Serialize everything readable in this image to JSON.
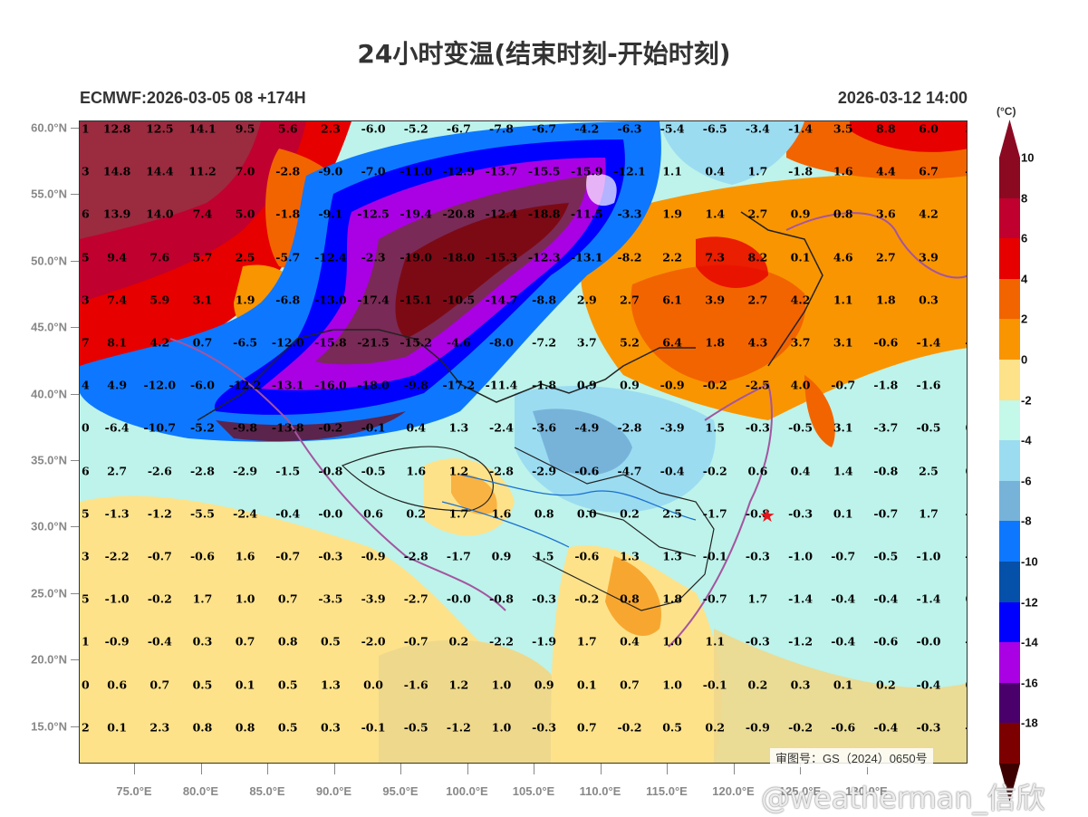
{
  "title": "24小时变温(结束时刻-开始时刻)",
  "subtitle_left": "ECMWF:2026-03-05 08 +174H",
  "subtitle_right": "2026-03-12 14:00",
  "colorbar": {
    "unit": "(°C)",
    "levels": [
      {
        "label": "10",
        "color": "#8b0a22"
      },
      {
        "label": "8",
        "color": "#c0002e"
      },
      {
        "label": "6",
        "color": "#e60000"
      },
      {
        "label": "4",
        "color": "#f26400"
      },
      {
        "label": "2",
        "color": "#f99500"
      },
      {
        "label": "0",
        "color": "#fde28a"
      },
      {
        "label": "-2",
        "color": "#c4f8e8"
      },
      {
        "label": "-4",
        "color": "#9bdcf1"
      },
      {
        "label": "-6",
        "color": "#77b3d9"
      },
      {
        "label": "-8",
        "color": "#0d78ff"
      },
      {
        "label": "-10",
        "color": "#0550a8"
      },
      {
        "label": "-12",
        "color": "#0000ff"
      },
      {
        "label": "-14",
        "color": "#aa00e4"
      },
      {
        "label": "-16",
        "color": "#4a006a"
      },
      {
        "label": "-18",
        "color": "#7d0000"
      }
    ],
    "top_arrow_color": "#8b0a22",
    "bottom_arrow_color": "#3d0000"
  },
  "axes": {
    "y_labels": [
      "60.0°N",
      "55.0°N",
      "50.0°N",
      "45.0°N",
      "40.0°N",
      "35.0°N",
      "30.0°N",
      "25.0°N",
      "20.0°N",
      "15.0°N"
    ],
    "x_labels": [
      "75.0°E",
      "80.0°E",
      "85.0°E",
      "90.0°E",
      "95.0°E",
      "100.0°E",
      "105.0°E",
      "110.0°E",
      "115.0°E",
      "120.0°E",
      "125.0°E",
      "130.0°E"
    ]
  },
  "grid_values": [
    [
      "1",
      "12.8",
      "12.5",
      "14.1",
      "9.5",
      "5.6",
      "2.3",
      "-6.0",
      "-5.2",
      "-6.7",
      "-7.8",
      "-6.7",
      "-4.2",
      "-6.3",
      "-5.4",
      "-6.5",
      "-3.4",
      "-1.4",
      "3.5",
      "8.8",
      "6.0",
      "3."
    ],
    [
      "3",
      "14.8",
      "14.4",
      "11.2",
      "7.0",
      "-2.8",
      "-9.0",
      "-7.0",
      "-11.0",
      "-12.9",
      "-13.7",
      "-15.5",
      "-15.9",
      "-12.1",
      "1.1",
      "0.4",
      "1.7",
      "-1.8",
      "1.6",
      "4.4",
      "6.7",
      "-0"
    ],
    [
      "6",
      "13.9",
      "14.0",
      "7.4",
      "5.0",
      "-1.8",
      "-9.1",
      "-12.5",
      "-19.4",
      "-20.8",
      "-12.4",
      "-18.8",
      "-11.5",
      "-3.3",
      "1.9",
      "1.4",
      "2.7",
      "0.9",
      "0.8",
      "3.6",
      "4.2",
      "1."
    ],
    [
      "5",
      "9.4",
      "7.6",
      "5.7",
      "2.5",
      "-5.7",
      "-12.4",
      "-2.3",
      "-19.0",
      "-18.0",
      "-15.3",
      "-12.3",
      "-13.1",
      "-8.2",
      "2.2",
      "7.3",
      "8.2",
      "0.1",
      "4.6",
      "2.7",
      "3.9",
      "1."
    ],
    [
      "3",
      "7.4",
      "5.9",
      "3.1",
      "1.9",
      "-6.8",
      "-13.0",
      "-17.4",
      "-15.1",
      "-10.5",
      "-14.7",
      "-8.8",
      "2.9",
      "2.7",
      "6.1",
      "3.9",
      "2.7",
      "4.2",
      "1.1",
      "1.8",
      "0.3",
      "1."
    ],
    [
      "7",
      "8.1",
      "4.2",
      "0.7",
      "-6.5",
      "-12.0",
      "-15.8",
      "-21.5",
      "-15.2",
      "-4.6",
      "-8.0",
      "-7.2",
      "3.7",
      "5.2",
      "6.4",
      "1.8",
      "4.3",
      "3.7",
      "3.1",
      "-0.6",
      "-1.4",
      "-0"
    ],
    [
      "4",
      "4.9",
      "-12.0",
      "-6.0",
      "-12.2",
      "-13.1",
      "-16.0",
      "-18.0",
      "-9.8",
      "-17.2",
      "-11.4",
      "-1.8",
      "0.9",
      "0.9",
      "-0.9",
      "-0.2",
      "-2.5",
      "4.0",
      "-0.7",
      "-1.8",
      "-1.6",
      "1."
    ],
    [
      "0",
      "-6.4",
      "-10.7",
      "-5.2",
      "-9.8",
      "-13.8",
      "-0.2",
      "-0.1",
      "0.4",
      "1.3",
      "-2.4",
      "-3.6",
      "-4.9",
      "-2.8",
      "-3.9",
      "1.5",
      "-0.3",
      "-0.5",
      "3.1",
      "-3.7",
      "-0.5",
      "0."
    ],
    [
      "6",
      "2.7",
      "-2.6",
      "-2.8",
      "-2.9",
      "-1.5",
      "-0.8",
      "-0.5",
      "1.6",
      "1.2",
      "-2.8",
      "-2.9",
      "-0.6",
      "-4.7",
      "-0.4",
      "-0.2",
      "0.6",
      "0.4",
      "1.4",
      "-0.8",
      "2.5",
      "0."
    ],
    [
      "5",
      "-1.3",
      "-1.2",
      "-5.5",
      "-2.4",
      "-0.4",
      "-0.0",
      "0.6",
      "0.2",
      "1.7",
      "1.6",
      "0.8",
      "0.0",
      "0.2",
      "2.5",
      "-1.7",
      "-0.8",
      "-0.3",
      "0.1",
      "-0.7",
      "1.7",
      "-0"
    ],
    [
      "3",
      "-2.2",
      "-0.7",
      "-0.6",
      "1.6",
      "-0.7",
      "-0.3",
      "-0.9",
      "-2.8",
      "-1.7",
      "0.9",
      "1.5",
      "-0.6",
      "1.3",
      "1.3",
      "-0.1",
      "-0.3",
      "-1.0",
      "-0.7",
      "-0.5",
      "-1.0",
      "-1"
    ],
    [
      "5",
      "-1.0",
      "-0.2",
      "1.7",
      "1.0",
      "0.7",
      "-3.5",
      "-3.9",
      "-2.7",
      "-0.0",
      "-0.8",
      "-0.3",
      "-0.2",
      "0.8",
      "1.8",
      "-0.7",
      "1.7",
      "-1.4",
      "-0.4",
      "-0.4",
      "-1.4",
      "0."
    ],
    [
      "1",
      "-0.9",
      "-0.4",
      "0.3",
      "0.7",
      "0.8",
      "0.5",
      "-2.0",
      "-0.7",
      "0.2",
      "-2.2",
      "-1.9",
      "1.7",
      "0.4",
      "1.0",
      "1.1",
      "-0.3",
      "-1.2",
      "-0.4",
      "-0.6",
      "-0.0",
      "-0"
    ],
    [
      "0",
      "0.6",
      "0.7",
      "0.5",
      "0.1",
      "0.5",
      "1.3",
      "0.0",
      "-1.6",
      "1.2",
      "1.0",
      "0.9",
      "0.1",
      "0.7",
      "1.0",
      "-0.1",
      "0.2",
      "0.3",
      "0.1",
      "0.2",
      "-0.4",
      "0."
    ],
    [
      "2",
      "0.1",
      "2.3",
      "0.8",
      "0.8",
      "0.5",
      "0.3",
      "-0.1",
      "-0.5",
      "-1.2",
      "1.0",
      "-0.3",
      "0.7",
      "-0.2",
      "0.5",
      "0.2",
      "-0.9",
      "-0.2",
      "-0.6",
      "-0.4",
      "-0.3",
      "-0"
    ]
  ],
  "approval_number": "审图号：GS（2024）0650号",
  "watermark": "@weatherman_信欣",
  "marker": "red-star"
}
